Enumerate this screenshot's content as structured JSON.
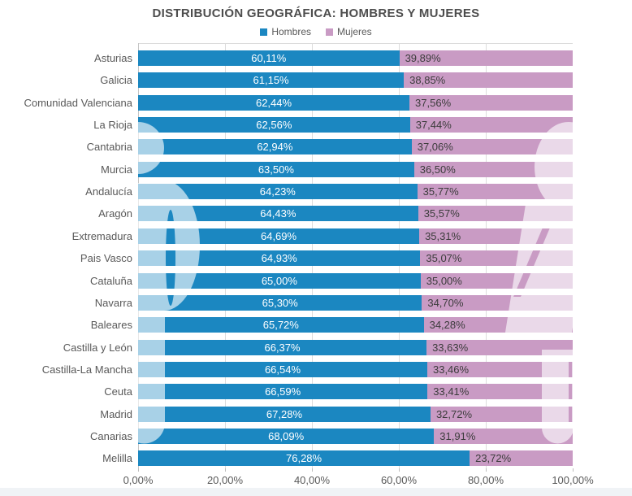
{
  "chart_data": {
    "type": "bar",
    "orientation": "horizontal",
    "stacked": true,
    "title": "DISTRIBUCIÓN GEOGRÁFICA: HOMBRES Y MUJERES",
    "legend_position": "top",
    "categories": [
      "Asturias",
      "Galicia",
      "Comunidad Valenciana",
      "La Rioja",
      "Cantabria",
      "Murcia",
      "Andalucía",
      "Aragón",
      "Extremadura",
      "Pais Vasco",
      "Cataluña",
      "Navarra",
      "Baleares",
      "Castilla y León",
      "Castilla-La Mancha",
      "Ceuta",
      "Madrid",
      "Canarias",
      "Melilla"
    ],
    "series": [
      {
        "name": "Hombres",
        "color": "#1b87c1",
        "values": [
          60.11,
          61.15,
          62.44,
          62.56,
          62.94,
          63.5,
          64.23,
          64.43,
          64.69,
          64.93,
          65.0,
          65.3,
          65.72,
          66.37,
          66.54,
          66.59,
          67.28,
          68.09,
          76.28
        ],
        "labels": [
          "60,11%",
          "61,15%",
          "62,44%",
          "62,56%",
          "62,94%",
          "63,50%",
          "64,23%",
          "64,43%",
          "64,69%",
          "64,93%",
          "65,00%",
          "65,30%",
          "65,72%",
          "66,37%",
          "66,54%",
          "66,59%",
          "67,28%",
          "68,09%",
          "76,28%"
        ]
      },
      {
        "name": "Mujeres",
        "color": "#c99bc4",
        "values": [
          39.89,
          38.85,
          37.56,
          37.44,
          37.06,
          36.5,
          35.77,
          35.57,
          35.31,
          35.07,
          35.0,
          34.7,
          34.28,
          33.63,
          33.46,
          33.41,
          32.72,
          31.91,
          23.72
        ],
        "labels": [
          "39,89%",
          "38,85%",
          "37,56%",
          "37,44%",
          "37,06%",
          "36,50%",
          "35,77%",
          "35,57%",
          "35,31%",
          "35,07%",
          "35,00%",
          "34,70%",
          "34,28%",
          "33,63%",
          "33,46%",
          "33,41%",
          "32,72%",
          "31,91%",
          "23,72%"
        ]
      }
    ],
    "x_axis": {
      "range": [
        0,
        100
      ],
      "tick_values": [
        0,
        20,
        40,
        60,
        80,
        100
      ],
      "tick_labels": [
        "0,00%",
        "20,00%",
        "40,00%",
        "60,00%",
        "80,00%",
        "100,00%"
      ],
      "grid": true
    }
  }
}
